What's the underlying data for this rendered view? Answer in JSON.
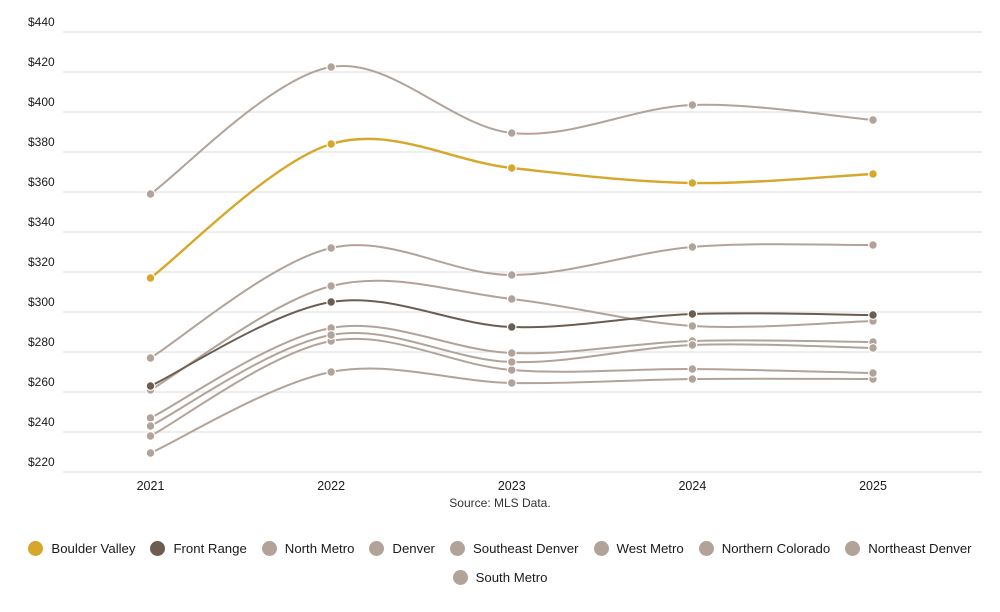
{
  "chart_data": {
    "type": "line",
    "x_labels": [
      "2021",
      "2022",
      "2023",
      "2024",
      "2025"
    ],
    "ylim": [
      220,
      440
    ],
    "ytick_step": 20,
    "ytick_prefix": "$",
    "grid": true,
    "legend_position": "bottom",
    "source": "Source: MLS Data.",
    "series": [
      {
        "name": "Boulder Valley",
        "color": "#D6A72A",
        "values": [
          317,
          384,
          372,
          364.5,
          369
        ]
      },
      {
        "name": "Front Range",
        "color": "#6B5D52",
        "values": [
          263,
          305,
          292.5,
          299,
          298.5
        ]
      },
      {
        "name": "North Metro",
        "color": "#B2A39A",
        "values": [
          247,
          292,
          279.5,
          285.5,
          285
        ]
      },
      {
        "name": "Denver",
        "color": "#B2A39A",
        "values": [
          359,
          422.5,
          389.5,
          403.5,
          396
        ]
      },
      {
        "name": "Southeast Denver",
        "color": "#B2A39A",
        "values": [
          261,
          313,
          306.5,
          293,
          295.5
        ]
      },
      {
        "name": "West Metro",
        "color": "#B2A39A",
        "values": [
          277,
          332,
          318.5,
          332.5,
          333.5
        ]
      },
      {
        "name": "Northern Colorado",
        "color": "#B2A39A",
        "values": [
          229.5,
          270,
          264.5,
          266.5,
          266.5
        ]
      },
      {
        "name": "Northeast Denver",
        "color": "#B2A39A",
        "values": [
          238,
          285.5,
          271,
          271.5,
          269.5
        ]
      },
      {
        "name": "South Metro",
        "color": "#B2A39A",
        "values": [
          243,
          288.5,
          275,
          283.5,
          282
        ]
      }
    ]
  }
}
